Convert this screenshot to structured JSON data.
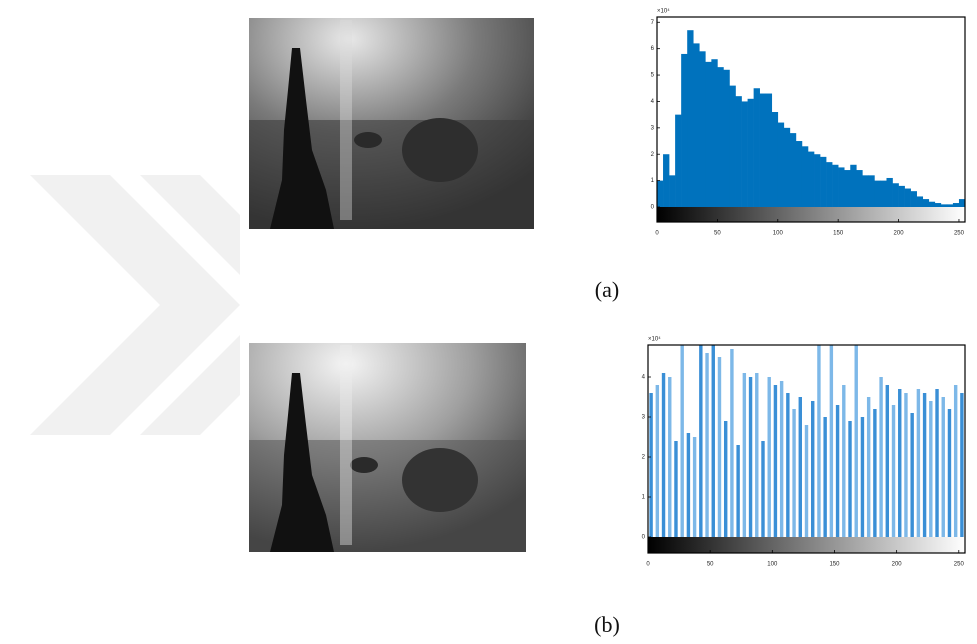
{
  "chart_data": [
    {
      "type": "histogram",
      "caption": "(a)",
      "y_scale_label": "×10⁴",
      "color": "#0072bd",
      "bins": [
        0,
        5,
        10,
        15,
        20,
        25,
        30,
        35,
        40,
        45,
        50,
        55,
        60,
        65,
        70,
        75,
        80,
        85,
        90,
        95,
        100,
        105,
        110,
        115,
        120,
        125,
        130,
        135,
        140,
        145,
        150,
        155,
        160,
        165,
        170,
        175,
        180,
        185,
        190,
        195,
        200,
        205,
        210,
        215,
        220,
        225,
        230,
        235,
        240,
        245,
        250,
        255
      ],
      "values": [
        1.0,
        2.0,
        1.2,
        3.5,
        5.8,
        6.7,
        6.2,
        5.9,
        5.5,
        5.6,
        5.3,
        5.2,
        4.6,
        4.2,
        4.0,
        4.1,
        4.5,
        4.3,
        4.3,
        3.6,
        3.2,
        3.0,
        2.8,
        2.5,
        2.3,
        2.1,
        2.0,
        1.9,
        1.7,
        1.6,
        1.5,
        1.4,
        1.6,
        1.4,
        1.2,
        1.2,
        1.0,
        1.0,
        1.1,
        0.9,
        0.8,
        0.7,
        0.6,
        0.4,
        0.3,
        0.2,
        0.15,
        0.1,
        0.1,
        0.15,
        0.3
      ],
      "xlim": [
        0,
        255
      ],
      "ylim": [
        0,
        7.2
      ],
      "xticks": [
        0,
        50,
        100,
        150,
        200,
        250
      ],
      "yticks": [
        0,
        1,
        2,
        3,
        4,
        5,
        6,
        7
      ]
    },
    {
      "type": "bar",
      "caption": "(b)",
      "y_scale_label": "×10⁴",
      "color": "#3a8fd6",
      "x": [
        2.5,
        7.5,
        12.5,
        17.5,
        22.5,
        27.5,
        32.5,
        37.5,
        42.5,
        47.5,
        52.5,
        57.5,
        62.5,
        67.5,
        72.5,
        77.5,
        82.5,
        87.5,
        92.5,
        97.5,
        102.5,
        107.5,
        112.5,
        117.5,
        122.5,
        127.5,
        132.5,
        137.5,
        142.5,
        147.5,
        152.5,
        157.5,
        162.5,
        167.5,
        172.5,
        177.5,
        182.5,
        187.5,
        192.5,
        197.5,
        202.5,
        207.5,
        212.5,
        217.5,
        222.5,
        227.5,
        232.5,
        237.5,
        242.5,
        247.5,
        252.5
      ],
      "values": [
        3.6,
        3.8,
        4.1,
        4.0,
        2.4,
        4.8,
        2.6,
        2.5,
        4.8,
        4.6,
        4.8,
        4.5,
        2.9,
        4.7,
        2.3,
        4.1,
        4.0,
        4.1,
        2.4,
        4.0,
        3.8,
        3.9,
        3.6,
        3.2,
        3.5,
        2.8,
        3.4,
        4.8,
        3.0,
        4.8,
        3.3,
        3.8,
        2.9,
        4.8,
        3.0,
        3.5,
        3.2,
        4.0,
        3.8,
        3.3,
        3.7,
        3.6,
        3.1,
        3.7,
        3.6,
        3.4,
        3.7,
        3.5,
        3.2,
        3.8,
        3.6
      ],
      "xlim": [
        0,
        255
      ],
      "ylim": [
        0,
        4.8
      ],
      "xticks": [
        0,
        50,
        100,
        150,
        200,
        250
      ],
      "yticks": [
        0,
        1,
        2,
        3,
        4
      ]
    }
  ]
}
